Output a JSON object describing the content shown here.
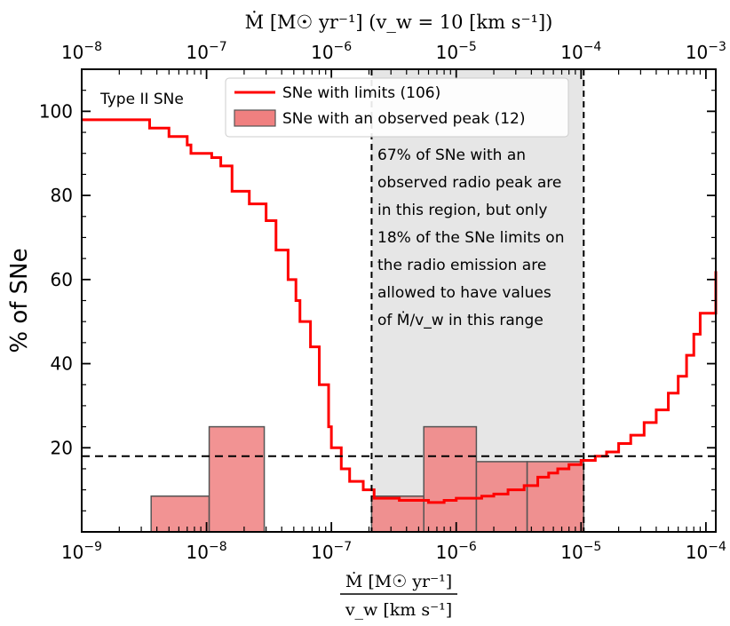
{
  "chart_data": {
    "type": "line+histogram",
    "title": "",
    "panel_label": "Type II SNe",
    "xlabel_num": "Ṁ [M☉ yr⁻¹]",
    "xlabel_den": "v_w [km s⁻¹]",
    "xlabel_top": "Ṁ [M☉ yr⁻¹] (v_w = 10 [km s⁻¹])",
    "ylabel": "% of SNe",
    "xscale": "log",
    "xlim": [
      1e-09,
      0.00012
    ],
    "ylim": [
      0,
      110
    ],
    "yticks": [
      20,
      40,
      60,
      80,
      100
    ],
    "ytick_labels": [
      "20",
      "40",
      "60",
      "80",
      "100"
    ],
    "xticks_bottom": [
      1e-09,
      1e-08,
      1e-07,
      1e-06,
      1e-05,
      0.0001
    ],
    "xtick_labels_bottom": [
      {
        "base": "10",
        "exp": "−9"
      },
      {
        "base": "10",
        "exp": "−8"
      },
      {
        "base": "10",
        "exp": "−7"
      },
      {
        "base": "10",
        "exp": "−6"
      },
      {
        "base": "10",
        "exp": "−5"
      },
      {
        "base": "10",
        "exp": "−4"
      }
    ],
    "top_axis_factor": 10,
    "xticks_top": [
      1e-08,
      1e-07,
      1e-06,
      1e-05,
      0.0001,
      0.001
    ],
    "xtick_labels_top": [
      {
        "base": "10",
        "exp": "−8"
      },
      {
        "base": "10",
        "exp": "−7"
      },
      {
        "base": "10",
        "exp": "−6"
      },
      {
        "base": "10",
        "exp": "−5"
      },
      {
        "base": "10",
        "exp": "−4"
      },
      {
        "base": "10",
        "exp": "−3"
      }
    ],
    "series": [
      {
        "name": "SNe with limits (106)",
        "kind": "step-line",
        "color": "#ff0000",
        "x": [
          1e-09,
          3.5e-09,
          5e-09,
          7e-09,
          7.5e-09,
          1.1e-08,
          1.3e-08,
          1.6e-08,
          2.2e-08,
          3e-08,
          3.6e-08,
          4.5e-08,
          5.2e-08,
          5.6e-08,
          6.8e-08,
          8e-08,
          9.5e-08,
          1e-07,
          1.2e-07,
          1.4e-07,
          1.8e-07,
          2.2e-07,
          2.6e-07,
          3.5e-07,
          6e-07,
          8e-07,
          1e-06,
          1.6e-06,
          2e-06,
          2.6e-06,
          3.5e-06,
          4.5e-06,
          5.5e-06,
          6.5e-06,
          8e-06,
          1e-05,
          1.3e-05,
          1.6e-05,
          2e-05,
          2.5e-05,
          3.2e-05,
          4e-05,
          5e-05,
          6e-05,
          7e-05,
          8e-05,
          9e-05,
          0.00012
        ],
        "y": [
          98,
          96,
          94,
          92,
          90,
          89,
          87,
          81,
          78,
          74,
          67,
          60,
          55,
          50,
          44,
          35,
          25,
          20,
          15,
          12,
          10,
          8,
          8,
          7.5,
          7,
          7.5,
          8,
          8.5,
          9,
          10,
          11,
          13,
          14,
          15,
          16,
          17,
          18,
          19,
          21,
          23,
          26,
          29,
          33,
          37,
          42,
          47,
          52,
          62
        ]
      },
      {
        "name": "SNe with an observed peak (12)",
        "kind": "histogram",
        "color": "#f08080",
        "bin_edges": [
          3.6e-09,
          1.05e-08,
          2.9e-08,
          2.1e-07,
          5.5e-07,
          1.45e-06,
          3.7e-06,
          1.05e-05
        ],
        "values": [
          8.5,
          25,
          0,
          8.5,
          25,
          16.7,
          16.7
        ]
      }
    ],
    "shaded_region": {
      "x_from": 2.1e-07,
      "x_to": 1.05e-05,
      "color": "#e6e6e6"
    },
    "hline": {
      "y": 18,
      "style": "dashed"
    },
    "legend": {
      "placement": "top-center",
      "entries": [
        "SNe with limits (106)",
        "SNe with an observed peak (12)"
      ]
    },
    "annotation": [
      "67% of SNe with an",
      "observed radio peak are",
      "in this region, but only",
      "18% of the SNe limits on",
      "the radio emission are",
      "allowed to have values",
      "of Ṁ/v_w in this range"
    ]
  }
}
